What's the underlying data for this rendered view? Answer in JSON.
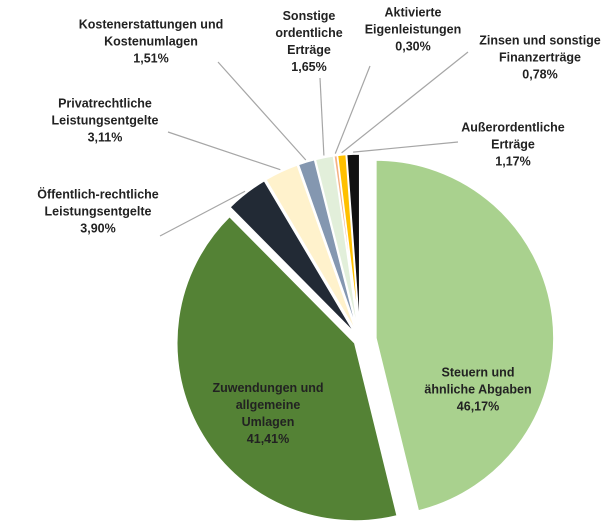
{
  "chart_data": {
    "type": "pie",
    "categories": [
      "Steuern und ähnliche Abgaben",
      "Zuwendungen und allgemeine Umlagen",
      "Öffentlich-rechtliche Leistungsentgelte",
      "Privatrechtliche Leistungsentgelte",
      "Kostenerstattungen und Kostenumlagen",
      "Sonstige ordentliche Erträge",
      "Aktivierte Eigenleistungen",
      "Zinsen und sonstige Finanzerträge",
      "Außerordentliche Erträge"
    ],
    "values": [
      46.17,
      41.41,
      3.9,
      3.11,
      1.51,
      1.65,
      0.3,
      0.78,
      1.17
    ],
    "value_labels": [
      "46,17%",
      "41,41%",
      "3,90%",
      "3,11%",
      "1,51%",
      "1,65%",
      "0,30%",
      "0,78%",
      "1,17%"
    ],
    "colors": [
      "#a9d18e",
      "#548235",
      "#222a35",
      "#fff2cc",
      "#8497b0",
      "#e2efda",
      "#f4b183",
      "#ffc000",
      "#111111"
    ]
  }
}
